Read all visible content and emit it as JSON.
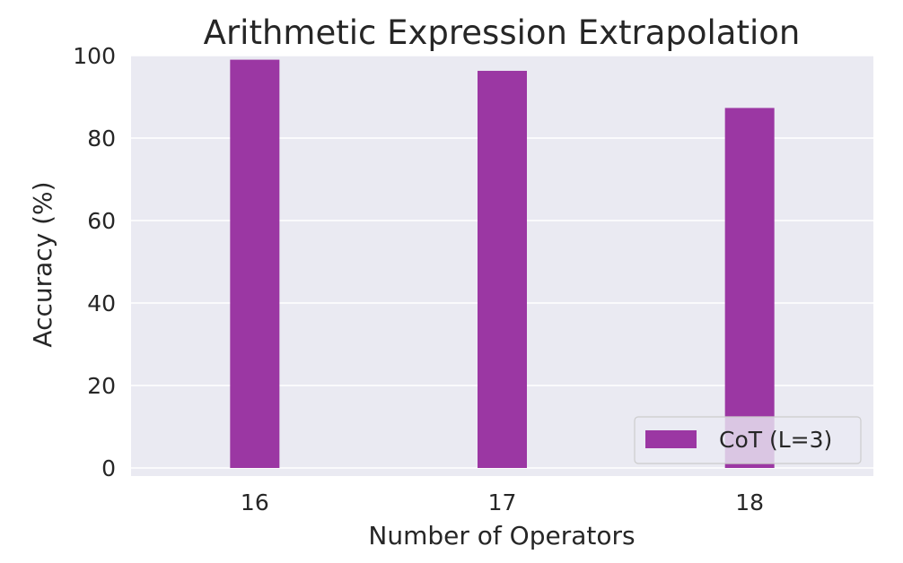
{
  "chart_data": {
    "type": "bar",
    "title": "Arithmetic Expression Extrapolation",
    "xlabel": "Number of Operators",
    "ylabel": "Accuracy (%)",
    "categories": [
      "16",
      "17",
      "18"
    ],
    "series": [
      {
        "name": "CoT (L=3)",
        "values": [
          99.0,
          96.3,
          87.3
        ],
        "color": "#9b37a3"
      }
    ],
    "ylim": [
      0,
      100
    ],
    "yticks": [
      "0",
      "20",
      "40",
      "60",
      "80",
      "100"
    ],
    "grid": true,
    "legend_position": "lower-right",
    "background": "#eaeaf2"
  }
}
